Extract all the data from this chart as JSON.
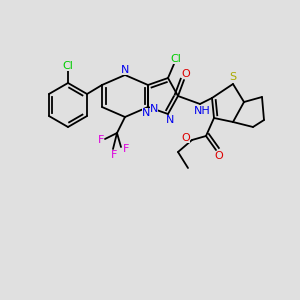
{
  "bg_color": "#e0e0e0",
  "bond_color": "#000000",
  "lw": 1.3,
  "figsize": [
    3.0,
    3.0
  ],
  "dpi": 100,
  "colors": {
    "Cl": "#00cc00",
    "N": "#0000ee",
    "O": "#dd0000",
    "S": "#aaaa00",
    "F": "#dd00dd",
    "C": "#000000",
    "NH": "#0000ee",
    "H": "#000000"
  },
  "fontsize": 7.5
}
